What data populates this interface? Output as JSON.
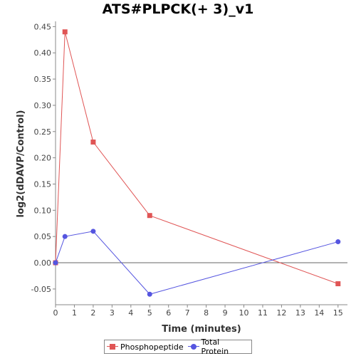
{
  "chart_data": {
    "type": "line",
    "title": "ATS#PLPCK(+ 3)_v1",
    "xlabel": "Time (minutes)",
    "ylabel": "log2(dDAVP/Control)",
    "xlim": [
      0,
      15.5
    ],
    "ylim": [
      -0.08,
      0.46
    ],
    "xticks": [
      0,
      1,
      2,
      3,
      4,
      5,
      6,
      7,
      8,
      9,
      10,
      11,
      12,
      13,
      14,
      15
    ],
    "yticks": [
      -0.05,
      0.0,
      0.05,
      0.1,
      0.15,
      0.2,
      0.25,
      0.3,
      0.35,
      0.4,
      0.45
    ],
    "ytick_labels": [
      "-0.05",
      "0.00",
      "0.05",
      "0.10",
      "0.15",
      "0.20",
      "0.25",
      "0.30",
      "0.35",
      "0.40",
      "0.45"
    ],
    "zero_line": true,
    "grid": false,
    "legend_position": "bottom",
    "series": [
      {
        "name": "Phosphopeptide",
        "color": "#e05555",
        "marker": "square",
        "x": [
          0,
          0.5,
          2,
          5,
          15
        ],
        "y": [
          0.0,
          0.44,
          0.23,
          0.09,
          -0.04
        ]
      },
      {
        "name": "Total Protein",
        "color": "#5555e0",
        "marker": "circle",
        "x": [
          0,
          0.5,
          2,
          5,
          15
        ],
        "y": [
          0.0,
          0.05,
          0.06,
          -0.06,
          0.04
        ]
      }
    ]
  }
}
